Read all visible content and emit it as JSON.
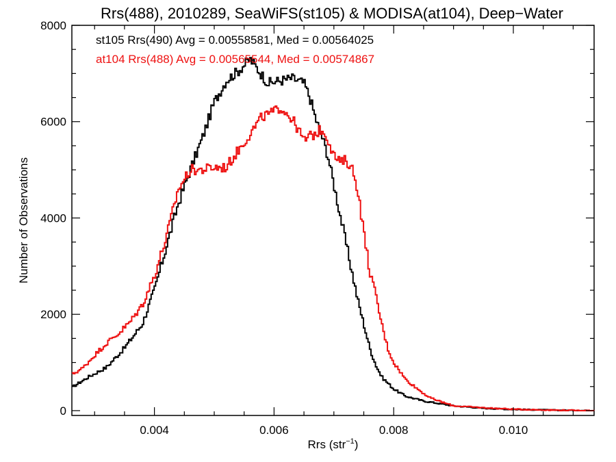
{
  "chart_data": {
    "type": "line",
    "title": "Rrs(488), 2010289, SeaWiFS(st105) & MODISA(at104), Deep−Water",
    "xlabel": "Rrs (str",
    "xlabel_sup": "−1",
    "xlabel_close": ")",
    "ylabel": "Number of Observations",
    "xlim": [
      0.00262,
      0.01135
    ],
    "ylim": [
      -100,
      8000
    ],
    "x_ticks": [
      0.004,
      0.006,
      0.008,
      0.01
    ],
    "x_tick_labels": [
      "0.004",
      "0.006",
      "0.008",
      "0.010"
    ],
    "y_ticks": [
      0,
      2000,
      4000,
      6000,
      8000
    ],
    "y_tick_labels": [
      "0",
      "2000",
      "4000",
      "6000",
      "8000"
    ],
    "grid": false,
    "legend_position": "top-left",
    "annotations": [
      {
        "text": "st105 Rrs(490) Avg = 0.00558581, Med = 0.00564025",
        "color": "#000000"
      },
      {
        "text": "at104 Rrs(488) Avg = 0.00565544, Med = 0.00574867",
        "color": "#ee1111"
      }
    ],
    "series": [
      {
        "color": "#000000",
        "points": [
          [
            0.00262,
            480
          ],
          [
            0.0029,
            700
          ],
          [
            0.0032,
            900
          ],
          [
            0.0035,
            1300
          ],
          [
            0.0038,
            1800
          ],
          [
            0.004,
            2500
          ],
          [
            0.0042,
            3400
          ],
          [
            0.0044,
            4300
          ],
          [
            0.0046,
            5000
          ],
          [
            0.0048,
            5650
          ],
          [
            0.005,
            6400
          ],
          [
            0.0052,
            6850
          ],
          [
            0.0054,
            7050
          ],
          [
            0.0056,
            7300
          ],
          [
            0.00575,
            7050
          ],
          [
            0.0059,
            6800
          ],
          [
            0.0061,
            6850
          ],
          [
            0.0063,
            6900
          ],
          [
            0.0065,
            6800
          ],
          [
            0.0066,
            6500
          ],
          [
            0.0067,
            6050
          ],
          [
            0.0068,
            5700
          ],
          [
            0.0069,
            5300
          ],
          [
            0.007,
            4700
          ],
          [
            0.0071,
            4100
          ],
          [
            0.0072,
            3500
          ],
          [
            0.0073,
            2900
          ],
          [
            0.0074,
            2300
          ],
          [
            0.0075,
            1800
          ],
          [
            0.0076,
            1300
          ],
          [
            0.0077,
            950
          ],
          [
            0.0078,
            700
          ],
          [
            0.008,
            450
          ],
          [
            0.0082,
            300
          ],
          [
            0.0085,
            200
          ],
          [
            0.009,
            100
          ],
          [
            0.0095,
            50
          ],
          [
            0.01,
            25
          ],
          [
            0.0105,
            15
          ],
          [
            0.011,
            5
          ],
          [
            0.01135,
            0
          ]
        ]
      },
      {
        "color": "#ee1111",
        "points": [
          [
            0.00262,
            750
          ],
          [
            0.0028,
            880
          ],
          [
            0.003,
            1150
          ],
          [
            0.0032,
            1400
          ],
          [
            0.0034,
            1600
          ],
          [
            0.0036,
            1850
          ],
          [
            0.0038,
            2200
          ],
          [
            0.004,
            2800
          ],
          [
            0.0042,
            3600
          ],
          [
            0.0044,
            4600
          ],
          [
            0.0046,
            5000
          ],
          [
            0.0048,
            5000
          ],
          [
            0.005,
            5050
          ],
          [
            0.0052,
            5050
          ],
          [
            0.0054,
            5400
          ],
          [
            0.0056,
            5750
          ],
          [
            0.0058,
            6100
          ],
          [
            0.006,
            6200
          ],
          [
            0.0061,
            6300
          ],
          [
            0.0062,
            6200
          ],
          [
            0.0063,
            6050
          ],
          [
            0.0064,
            5850
          ],
          [
            0.0065,
            5600
          ],
          [
            0.0066,
            5700
          ],
          [
            0.0067,
            5750
          ],
          [
            0.0068,
            5850
          ],
          [
            0.0069,
            5650
          ],
          [
            0.007,
            5300
          ],
          [
            0.0071,
            5150
          ],
          [
            0.0072,
            5200
          ],
          [
            0.0073,
            5050
          ],
          [
            0.0074,
            4600
          ],
          [
            0.0075,
            3700
          ],
          [
            0.0076,
            2900
          ],
          [
            0.0077,
            2400
          ],
          [
            0.0078,
            1800
          ],
          [
            0.0079,
            1300
          ],
          [
            0.008,
            1000
          ],
          [
            0.0082,
            650
          ],
          [
            0.0084,
            450
          ],
          [
            0.0086,
            270
          ],
          [
            0.0088,
            180
          ],
          [
            0.009,
            100
          ],
          [
            0.0095,
            60
          ],
          [
            0.01,
            30
          ],
          [
            0.0105,
            15
          ],
          [
            0.011,
            5
          ],
          [
            0.01135,
            0
          ]
        ]
      }
    ]
  }
}
